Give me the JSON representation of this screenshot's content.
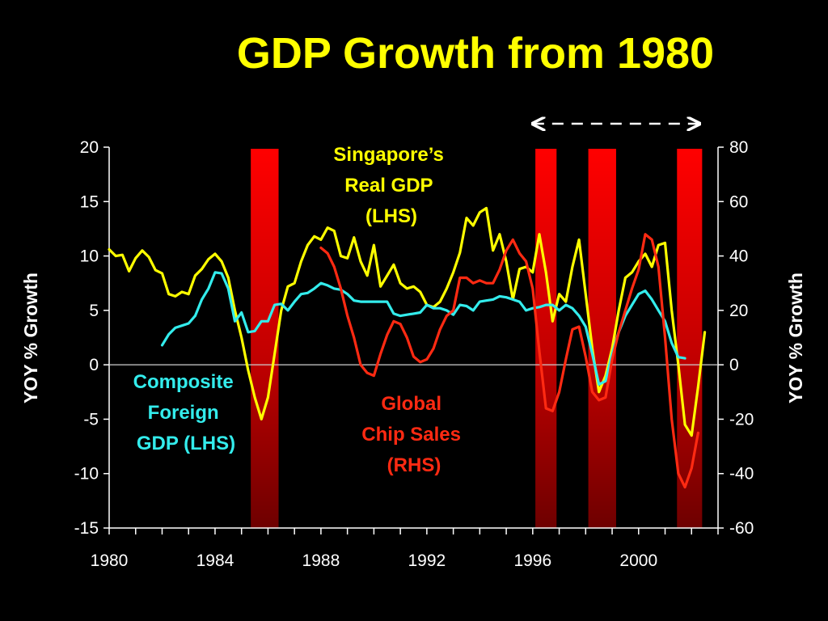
{
  "chart_data": {
    "type": "line",
    "title": "GDP Growth from 1980",
    "ylabel_left": "YOY % Growth",
    "ylabel_right": "YOY % Growth",
    "ylim_left": [
      -15,
      20
    ],
    "ylim_right": [
      -60,
      80
    ],
    "xlim": [
      1980,
      2003
    ],
    "x_ticks": [
      1980,
      1984,
      1988,
      1992,
      1996,
      2000
    ],
    "x_tick_labels": [
      "1980",
      "1984",
      "1988",
      "1992",
      "1996",
      "2000"
    ],
    "y_ticks_left": [
      20,
      15,
      10,
      5,
      0,
      -5,
      -10,
      -15
    ],
    "y_tick_labels_left": [
      "20",
      "15",
      "10",
      "5",
      "0",
      "-5",
      "-10",
      "-15"
    ],
    "y_ticks_right": [
      80,
      60,
      40,
      20,
      0,
      -20,
      -40,
      -60
    ],
    "y_tick_labels_right": [
      "80",
      "60",
      "40",
      "20",
      "0",
      "-20",
      "-40",
      "-60"
    ],
    "grid": false,
    "zero_line": true,
    "shaded_periods": [
      {
        "start": 1985.35,
        "end": 1986.4
      },
      {
        "start": 1996.1,
        "end": 1996.9
      },
      {
        "start": 1998.1,
        "end": 1999.15
      },
      {
        "start": 2001.45,
        "end": 2002.4
      }
    ],
    "arrow_period": {
      "start": 1996.0,
      "end": 2002.3
    },
    "series": [
      {
        "name": "Singapore’s Real GDP (LHS)",
        "label_lines": [
          "Singapore’s",
          "Real GDP",
          "(LHS)"
        ],
        "axis": "left",
        "color": "#ffff00",
        "points": [
          [
            1980.0,
            10.6
          ],
          [
            1980.25,
            10.0
          ],
          [
            1980.5,
            10.1
          ],
          [
            1980.75,
            8.6
          ],
          [
            1981.0,
            9.8
          ],
          [
            1981.25,
            10.5
          ],
          [
            1981.5,
            9.9
          ],
          [
            1981.75,
            8.7
          ],
          [
            1982.0,
            8.4
          ],
          [
            1982.25,
            6.5
          ],
          [
            1982.5,
            6.3
          ],
          [
            1982.75,
            6.7
          ],
          [
            1983.0,
            6.5
          ],
          [
            1983.25,
            8.2
          ],
          [
            1983.5,
            8.8
          ],
          [
            1983.75,
            9.7
          ],
          [
            1984.0,
            10.2
          ],
          [
            1984.25,
            9.5
          ],
          [
            1984.5,
            8.0
          ],
          [
            1984.75,
            5.0
          ],
          [
            1985.0,
            2.5
          ],
          [
            1985.25,
            -0.5
          ],
          [
            1985.5,
            -3.0
          ],
          [
            1985.75,
            -5.0
          ],
          [
            1986.0,
            -3.0
          ],
          [
            1986.25,
            1.0
          ],
          [
            1986.5,
            5.0
          ],
          [
            1986.75,
            7.2
          ],
          [
            1987.0,
            7.5
          ],
          [
            1987.25,
            9.5
          ],
          [
            1987.5,
            11.0
          ],
          [
            1987.75,
            11.8
          ],
          [
            1988.0,
            11.5
          ],
          [
            1988.25,
            12.6
          ],
          [
            1988.5,
            12.3
          ],
          [
            1988.75,
            10.0
          ],
          [
            1989.0,
            9.8
          ],
          [
            1989.25,
            11.7
          ],
          [
            1989.5,
            9.5
          ],
          [
            1989.75,
            8.2
          ],
          [
            1990.0,
            11.0
          ],
          [
            1990.25,
            7.2
          ],
          [
            1990.5,
            8.2
          ],
          [
            1990.75,
            9.2
          ],
          [
            1991.0,
            7.5
          ],
          [
            1991.25,
            7.0
          ],
          [
            1991.5,
            7.2
          ],
          [
            1991.75,
            6.7
          ],
          [
            1992.0,
            5.5
          ],
          [
            1992.25,
            5.3
          ],
          [
            1992.5,
            5.8
          ],
          [
            1992.75,
            7.0
          ],
          [
            1993.0,
            8.5
          ],
          [
            1993.25,
            10.3
          ],
          [
            1993.5,
            13.5
          ],
          [
            1993.75,
            12.8
          ],
          [
            1994.0,
            14.0
          ],
          [
            1994.25,
            14.4
          ],
          [
            1994.5,
            10.5
          ],
          [
            1994.75,
            12.0
          ],
          [
            1995.0,
            9.5
          ],
          [
            1995.25,
            6.0
          ],
          [
            1995.5,
            8.8
          ],
          [
            1995.75,
            9.0
          ],
          [
            1996.0,
            8.5
          ],
          [
            1996.25,
            12.0
          ],
          [
            1996.5,
            8.5
          ],
          [
            1996.75,
            4.0
          ],
          [
            1997.0,
            6.5
          ],
          [
            1997.25,
            5.8
          ],
          [
            1997.5,
            9.0
          ],
          [
            1997.75,
            11.5
          ],
          [
            1998.0,
            6.5
          ],
          [
            1998.25,
            1.5
          ],
          [
            1998.5,
            -2.5
          ],
          [
            1998.75,
            -1.0
          ],
          [
            1999.0,
            1.5
          ],
          [
            1999.25,
            5.0
          ],
          [
            1999.5,
            8.0
          ],
          [
            1999.75,
            8.5
          ],
          [
            2000.0,
            9.5
          ],
          [
            2000.25,
            10.2
          ],
          [
            2000.5,
            9.0
          ],
          [
            2000.75,
            11.0
          ],
          [
            2001.0,
            11.2
          ],
          [
            2001.25,
            5.0
          ],
          [
            2001.5,
            0.0
          ],
          [
            2001.75,
            -5.5
          ],
          [
            2002.0,
            -6.5
          ],
          [
            2002.25,
            -2.0
          ],
          [
            2002.5,
            3.0
          ]
        ]
      },
      {
        "name": "Composite Foreign GDP (LHS)",
        "label_lines": [
          "Composite",
          "Foreign",
          "GDP (LHS)"
        ],
        "axis": "left",
        "color": "#33ecec",
        "points": [
          [
            1982.0,
            1.8
          ],
          [
            1982.25,
            2.8
          ],
          [
            1982.5,
            3.4
          ],
          [
            1982.75,
            3.6
          ],
          [
            1983.0,
            3.8
          ],
          [
            1983.25,
            4.5
          ],
          [
            1983.5,
            6.0
          ],
          [
            1983.75,
            7.0
          ],
          [
            1984.0,
            8.5
          ],
          [
            1984.25,
            8.4
          ],
          [
            1984.5,
            7.0
          ],
          [
            1984.75,
            4.0
          ],
          [
            1985.0,
            4.8
          ],
          [
            1985.25,
            3.0
          ],
          [
            1985.5,
            3.1
          ],
          [
            1985.75,
            4.0
          ],
          [
            1986.0,
            4.0
          ],
          [
            1986.25,
            5.5
          ],
          [
            1986.5,
            5.6
          ],
          [
            1986.75,
            5.0
          ],
          [
            1987.0,
            5.8
          ],
          [
            1987.25,
            6.5
          ],
          [
            1987.5,
            6.6
          ],
          [
            1987.75,
            7.0
          ],
          [
            1988.0,
            7.5
          ],
          [
            1988.25,
            7.3
          ],
          [
            1988.5,
            7.0
          ],
          [
            1988.75,
            6.9
          ],
          [
            1989.0,
            6.5
          ],
          [
            1989.25,
            5.9
          ],
          [
            1989.5,
            5.8
          ],
          [
            1989.75,
            5.8
          ],
          [
            1990.0,
            5.8
          ],
          [
            1990.25,
            5.8
          ],
          [
            1990.5,
            5.8
          ],
          [
            1990.75,
            4.7
          ],
          [
            1991.0,
            4.5
          ],
          [
            1991.25,
            4.6
          ],
          [
            1991.5,
            4.7
          ],
          [
            1991.75,
            4.8
          ],
          [
            1992.0,
            5.5
          ],
          [
            1992.25,
            5.2
          ],
          [
            1992.5,
            5.2
          ],
          [
            1992.75,
            5.0
          ],
          [
            1993.0,
            4.6
          ],
          [
            1993.25,
            5.5
          ],
          [
            1993.5,
            5.4
          ],
          [
            1993.75,
            5.0
          ],
          [
            1994.0,
            5.8
          ],
          [
            1994.25,
            5.9
          ],
          [
            1994.5,
            6.0
          ],
          [
            1994.75,
            6.3
          ],
          [
            1995.0,
            6.2
          ],
          [
            1995.25,
            6.0
          ],
          [
            1995.5,
            5.8
          ],
          [
            1995.75,
            5.0
          ],
          [
            1996.0,
            5.2
          ],
          [
            1996.25,
            5.3
          ],
          [
            1996.5,
            5.5
          ],
          [
            1996.75,
            5.5
          ],
          [
            1997.0,
            5.0
          ],
          [
            1997.25,
            5.5
          ],
          [
            1997.5,
            5.2
          ],
          [
            1997.75,
            4.5
          ],
          [
            1998.0,
            3.5
          ],
          [
            1998.25,
            1.0
          ],
          [
            1998.5,
            -1.8
          ],
          [
            1998.75,
            -1.5
          ],
          [
            1999.0,
            1.0
          ],
          [
            1999.25,
            3.0
          ],
          [
            1999.5,
            4.5
          ],
          [
            1999.75,
            5.5
          ],
          [
            2000.0,
            6.5
          ],
          [
            2000.25,
            6.8
          ],
          [
            2000.5,
            6.0
          ],
          [
            2000.75,
            5.0
          ],
          [
            2001.0,
            4.0
          ],
          [
            2001.25,
            2.0
          ],
          [
            2001.5,
            0.7
          ],
          [
            2001.75,
            0.6
          ]
        ]
      },
      {
        "name": "Global Chip Sales (RHS)",
        "label_lines": [
          "Global",
          "Chip Sales",
          "(RHS)"
        ],
        "axis": "right",
        "color": "#ff2a12",
        "points": [
          [
            1988.0,
            43
          ],
          [
            1988.25,
            41
          ],
          [
            1988.5,
            36
          ],
          [
            1988.75,
            28
          ],
          [
            1989.0,
            18
          ],
          [
            1989.25,
            10
          ],
          [
            1989.5,
            0
          ],
          [
            1989.75,
            -3
          ],
          [
            1990.0,
            -4
          ],
          [
            1990.25,
            4
          ],
          [
            1990.5,
            11
          ],
          [
            1990.75,
            16
          ],
          [
            1991.0,
            15
          ],
          [
            1991.25,
            10
          ],
          [
            1991.5,
            3
          ],
          [
            1991.75,
            1
          ],
          [
            1992.0,
            2
          ],
          [
            1992.25,
            6
          ],
          [
            1992.5,
            13
          ],
          [
            1992.75,
            18
          ],
          [
            1993.0,
            20
          ],
          [
            1993.25,
            32
          ],
          [
            1993.5,
            32
          ],
          [
            1993.75,
            30
          ],
          [
            1994.0,
            31
          ],
          [
            1994.25,
            30
          ],
          [
            1994.5,
            30
          ],
          [
            1994.75,
            35
          ],
          [
            1995.0,
            42
          ],
          [
            1995.25,
            46
          ],
          [
            1995.5,
            41
          ],
          [
            1995.75,
            38
          ],
          [
            1996.0,
            28
          ],
          [
            1996.25,
            5
          ],
          [
            1996.5,
            -16
          ],
          [
            1996.75,
            -17
          ],
          [
            1997.0,
            -10
          ],
          [
            1997.25,
            2
          ],
          [
            1997.5,
            13
          ],
          [
            1997.75,
            14
          ],
          [
            1998.0,
            3
          ],
          [
            1998.25,
            -10
          ],
          [
            1998.5,
            -13
          ],
          [
            1998.75,
            -12
          ],
          [
            1999.0,
            2
          ],
          [
            1999.25,
            12
          ],
          [
            1999.5,
            20
          ],
          [
            1999.75,
            28
          ],
          [
            2000.0,
            35
          ],
          [
            2000.25,
            48
          ],
          [
            2000.5,
            46
          ],
          [
            2000.75,
            36
          ],
          [
            2001.0,
            10
          ],
          [
            2001.25,
            -20
          ],
          [
            2001.5,
            -40
          ],
          [
            2001.75,
            -45
          ],
          [
            2002.0,
            -38
          ],
          [
            2002.25,
            -25
          ]
        ]
      }
    ]
  }
}
